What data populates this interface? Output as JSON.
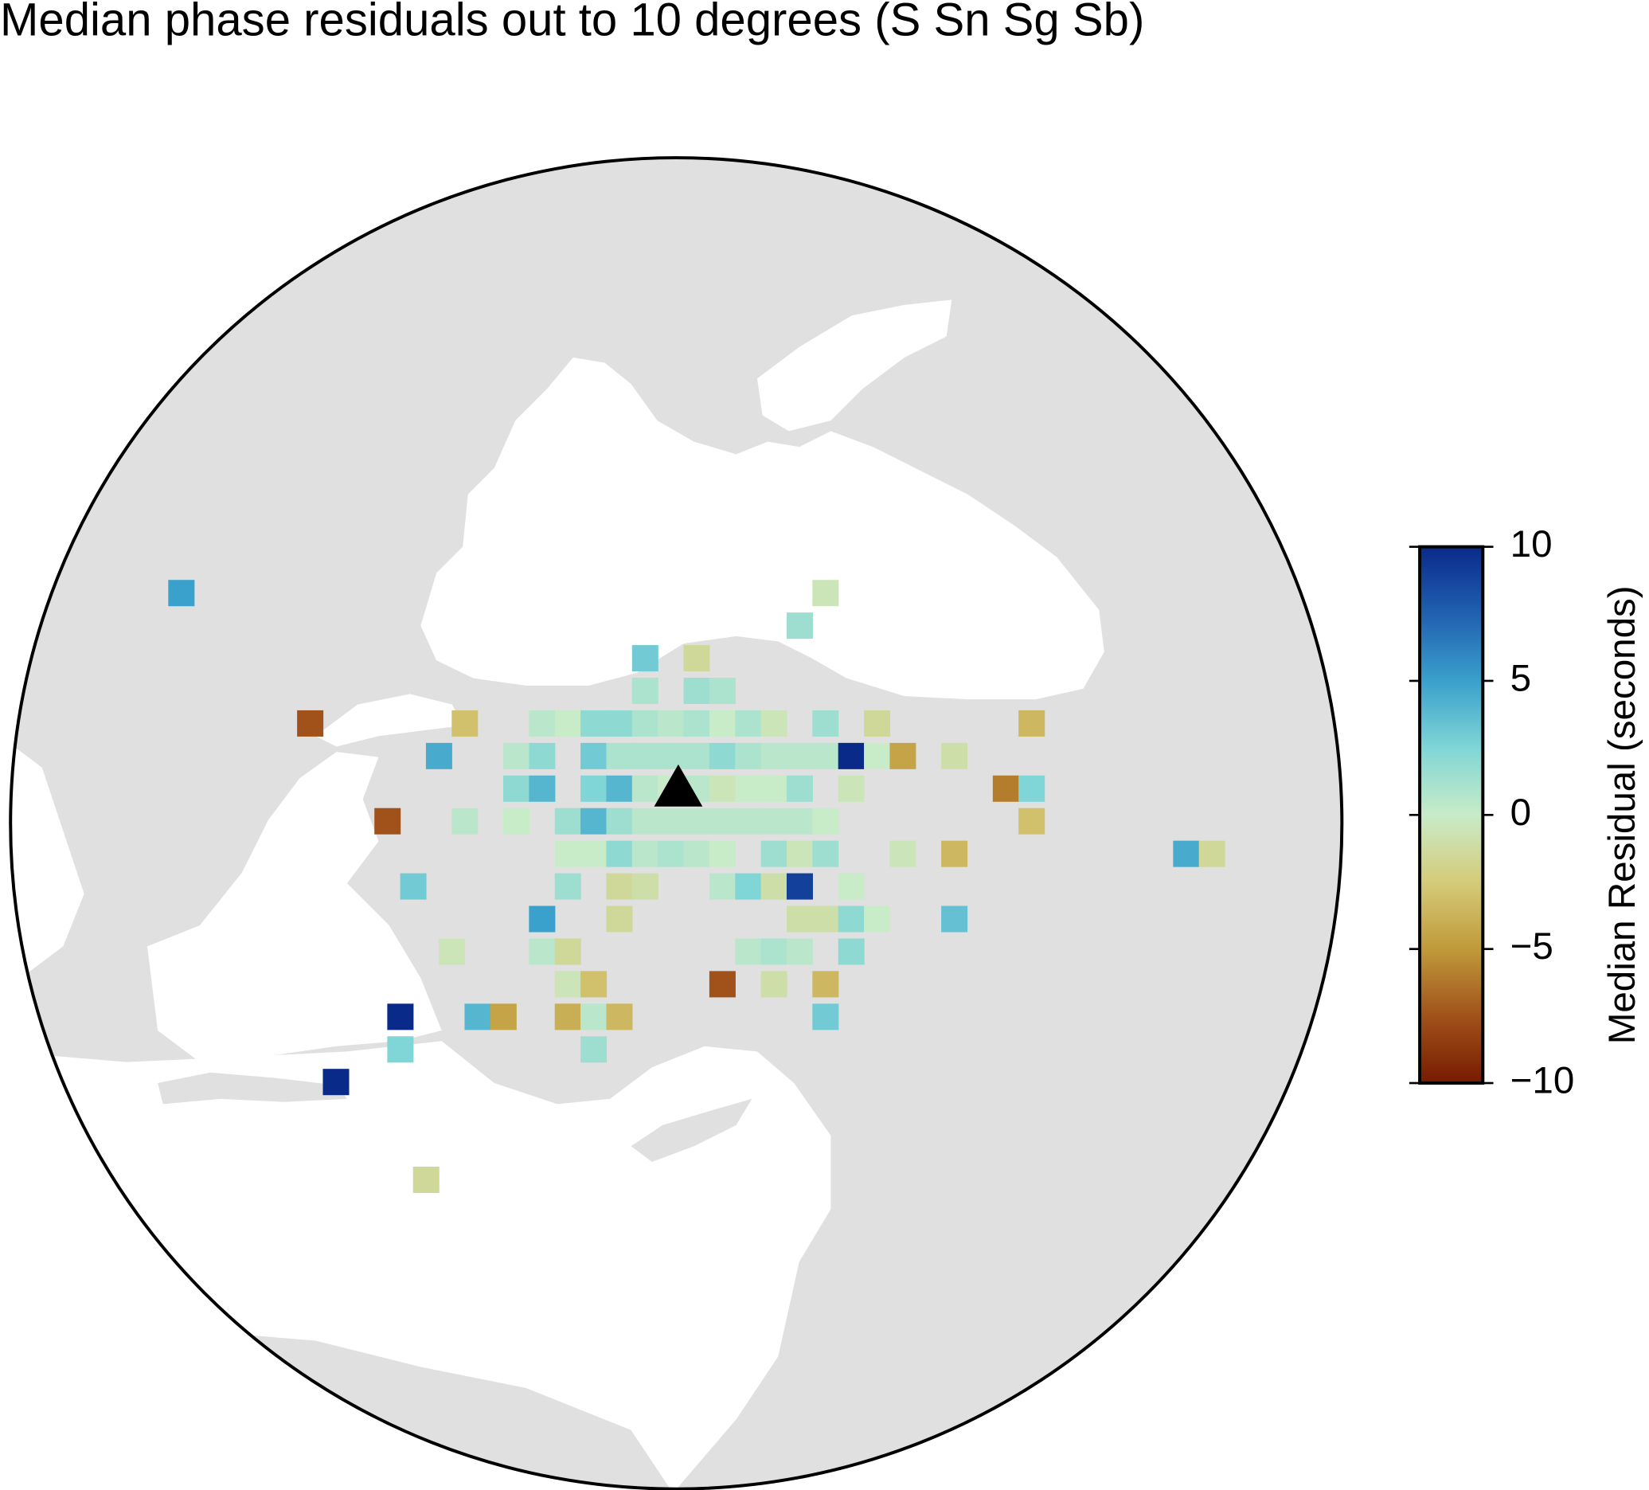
{
  "chart_data": {
    "type": "map",
    "title": "Median phase residuals out to 10 degrees (S Sn Sg Sb)",
    "colorbar_label": "Median Residual (seconds)",
    "clim": [
      -10,
      10
    ],
    "cticks": [
      {
        "value": -10,
        "label": "−10"
      },
      {
        "value": -5,
        "label": "−5"
      },
      0,
      5,
      10
    ],
    "colormap": [
      "#781a00",
      "#a0521a",
      "#c09a3a",
      "#d5cb7a",
      "#c8ebc8",
      "#80d6d6",
      "#3aa0cc",
      "#2060b0",
      "#0a2a8a"
    ],
    "cells": {
      "lon": [
        23.75,
        36.25,
        35.75,
        32.75,
        33.75,
        32.75,
        33.75,
        34.25,
        26.25,
        29.25,
        30.75,
        31.25,
        31.75,
        32.25,
        32.75,
        33.25,
        33.75,
        34.25,
        34.75,
        35.25,
        36.25,
        37.25,
        40.25,
        28.75,
        30.25,
        30.75,
        31.75,
        32.25,
        32.75,
        33.25,
        33.75,
        34.25,
        34.75,
        35.25,
        35.75,
        36.25,
        36.75,
        37.25,
        37.75,
        38.75,
        30.25,
        30.75,
        31.75,
        32.25,
        32.75,
        33.25,
        33.75,
        34.25,
        34.75,
        35.25,
        35.75,
        36.75,
        39.75,
        40.25,
        27.75,
        29.25,
        30.25,
        31.25,
        31.75,
        32.25,
        32.75,
        33.25,
        33.75,
        34.25,
        34.75,
        35.25,
        35.75,
        36.25,
        40.25,
        31.25,
        31.75,
        32.25,
        32.75,
        33.25,
        33.75,
        34.25,
        35.25,
        35.75,
        36.25,
        37.75,
        38.75,
        43.25,
        43.75,
        28.25,
        31.25,
        32.25,
        32.75,
        34.25,
        34.75,
        35.25,
        35.75,
        36.75,
        30.75,
        32.25,
        35.75,
        36.25,
        36.75,
        37.25,
        38.75,
        29,
        30.75,
        31.25,
        34.75,
        35.25,
        35.75,
        36.75,
        31.25,
        31.75,
        34.25,
        35.25,
        36.25,
        28,
        29.5,
        30,
        31.25,
        31.75,
        32.25,
        36.25,
        28,
        31.75,
        26.75,
        28.5
      ],
      "lat": [
        42.75,
        42.75,
        42.25,
        41.75,
        41.75,
        41.25,
        41.25,
        41.25,
        40.75,
        40.75,
        40.75,
        40.75,
        40.75,
        40.75,
        40.75,
        40.75,
        40.75,
        40.75,
        40.75,
        40.75,
        40.75,
        40.75,
        40.75,
        40.25,
        40.25,
        40.25,
        40.25,
        40.25,
        40.25,
        40.25,
        40.25,
        40.25,
        40.25,
        40.25,
        40.25,
        40.25,
        40.25,
        40.25,
        40.25,
        40.25,
        39.75,
        39.75,
        39.75,
        39.75,
        39.75,
        39.75,
        39.75,
        39.75,
        39.75,
        39.75,
        39.75,
        39.75,
        39.75,
        39.75,
        39.25,
        39.25,
        39.25,
        39.25,
        39.25,
        39.25,
        39.25,
        39.25,
        39.25,
        39.25,
        39.25,
        39.25,
        39.25,
        39.25,
        39.25,
        38.75,
        38.75,
        38.75,
        38.75,
        38.75,
        38.75,
        38.75,
        38.75,
        38.75,
        38.75,
        38.75,
        38.75,
        38.75,
        38.75,
        38.25,
        38.25,
        38.25,
        38.25,
        38.25,
        38.25,
        38.25,
        38.25,
        38.25,
        37.75,
        37.75,
        37.75,
        37.75,
        37.75,
        37.75,
        37.75,
        37.25,
        37.25,
        37.25,
        37.25,
        37.25,
        37.25,
        37.25,
        36.75,
        36.75,
        36.75,
        36.75,
        36.75,
        36.25,
        36.25,
        36.25,
        36.25,
        36.25,
        36.25,
        36.25,
        35.75,
        35.75,
        35.25,
        33.75
      ],
      "values": [
        5,
        -0.5,
        1.5,
        3,
        -1.5,
        1,
        1.5,
        1,
        -7.5,
        -3,
        0.5,
        0,
        2,
        2,
        1,
        0.5,
        1,
        0,
        1,
        -0.5,
        1.5,
        -1.5,
        -3.5,
        4.5,
        0.5,
        2,
        3,
        1,
        1,
        1,
        1,
        2,
        1,
        0.5,
        0.5,
        0.5,
        10,
        0,
        -4.5,
        -1,
        2,
        4,
        2.5,
        4,
        0.5,
        0,
        0.5,
        -0.5,
        0,
        0,
        1.5,
        -0.5,
        -6,
        2.5,
        -7.5,
        0.5,
        0,
        1.5,
        4,
        1.5,
        0.5,
        0.5,
        0.5,
        0.5,
        0.5,
        0.5,
        0.5,
        0,
        -3,
        0,
        0,
        2,
        0.5,
        1,
        0.5,
        0,
        1.5,
        -0.5,
        1.5,
        -0.5,
        -3.5,
        4.5,
        -1.5,
        3,
        1.5,
        -1.5,
        -1,
        0.5,
        2.5,
        -1,
        9,
        0,
        5,
        -1.5,
        -1,
        -1,
        2,
        0,
        3.5,
        -0.5,
        0.5,
        -1.5,
        0.5,
        1,
        0.5,
        2,
        -0.5,
        -3,
        -7.5,
        -1,
        -3.5,
        10,
        4,
        -4.5,
        -4,
        0.5,
        -3.5,
        3,
        2.5,
        1.5,
        10,
        -1.5
      ]
    }
  }
}
